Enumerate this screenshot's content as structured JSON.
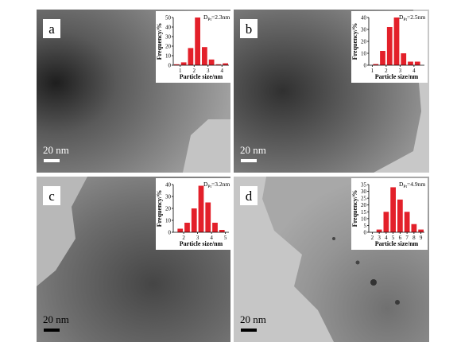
{
  "chart_data": [
    {
      "type": "histogram",
      "panel_label": "a",
      "scale_bar": "20 nm",
      "title_symbol": "D",
      "title_subscript": "Pt",
      "title_value": "=2.3nm",
      "xlabel": "Particle size/nm",
      "ylabel": "Frequency/%",
      "color": "#e3202a",
      "bins": [
        0.5,
        1,
        1.5,
        2,
        2.5,
        3,
        3.5,
        4,
        4.5
      ],
      "values": [
        1,
        3,
        18,
        50,
        19,
        6,
        1,
        2
      ],
      "xlim": [
        0.5,
        4.5
      ],
      "xticks": [
        1,
        2,
        3,
        4
      ],
      "ylim": [
        0,
        50
      ],
      "yticks": [
        0,
        10,
        20,
        30,
        40,
        50
      ]
    },
    {
      "type": "histogram",
      "panel_label": "b",
      "scale_bar": "20 nm",
      "title_symbol": "D",
      "title_subscript": "Pt",
      "title_value": "=2.5nm",
      "xlabel": "Particle size/nm",
      "ylabel": "Frequency/%",
      "color": "#e3202a",
      "bins": [
        1,
        1.5,
        2,
        2.5,
        3,
        3.5,
        4,
        4.5
      ],
      "values": [
        1,
        12,
        32,
        40,
        10,
        3,
        3
      ],
      "xlim": [
        0.75,
        4.75
      ],
      "xticks": [
        1,
        2,
        3,
        4
      ],
      "ylim": [
        0,
        40
      ],
      "yticks": [
        0,
        10,
        20,
        30,
        40
      ]
    },
    {
      "type": "histogram",
      "panel_label": "c",
      "scale_bar": "20 nm",
      "title_symbol": "D",
      "title_subscript": "Pt",
      "title_value": "=3.2nm",
      "xlabel": "Particle size/nm",
      "ylabel": "Frequency/%",
      "color": "#e3202a",
      "bins": [
        1.5,
        2,
        2.5,
        3,
        3.5,
        4,
        4.5,
        5
      ],
      "values": [
        3,
        8,
        20,
        39,
        25,
        8,
        2
      ],
      "xlim": [
        1.25,
        5.25
      ],
      "xticks": [
        2,
        3,
        4,
        5
      ],
      "ylim": [
        0,
        40
      ],
      "yticks": [
        0,
        10,
        20,
        30,
        40
      ]
    },
    {
      "type": "histogram",
      "panel_label": "d",
      "scale_bar": "20 nm",
      "title_symbol": "D",
      "title_subscript": "Pt",
      "title_value": "=4.9nm",
      "xlabel": "Particle size/nm",
      "ylabel": "Frequency/%",
      "color": "#e3202a",
      "bins": [
        2.5,
        3.5,
        4.5,
        5.5,
        6.5,
        7.5,
        8.5,
        9.5
      ],
      "values": [
        2,
        15,
        33,
        24,
        15,
        6,
        2
      ],
      "xlim": [
        1.5,
        9.5
      ],
      "xticks": [
        2,
        3,
        4,
        5,
        6,
        7,
        8,
        9
      ],
      "ylim": [
        0,
        35
      ],
      "yticks": [
        0,
        5,
        10,
        15,
        20,
        25,
        30,
        35
      ]
    }
  ]
}
